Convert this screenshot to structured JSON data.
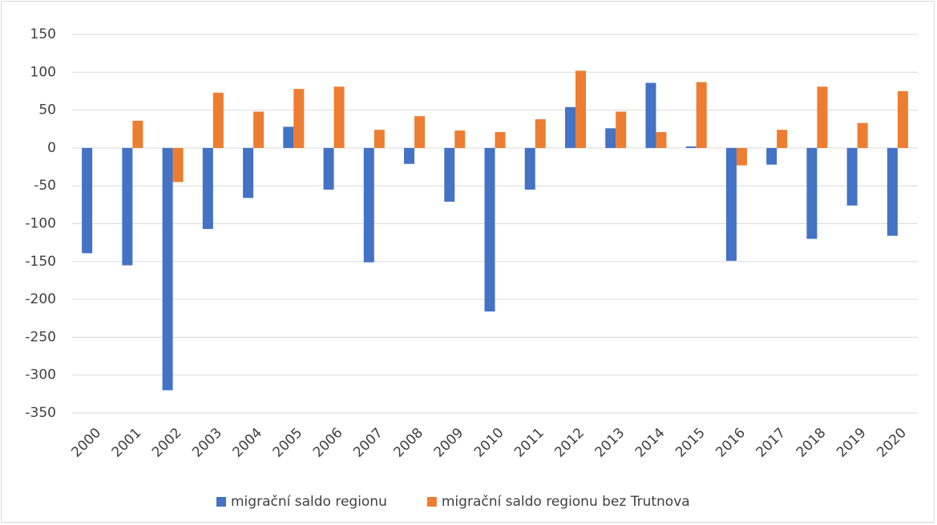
{
  "chart_data": {
    "type": "bar",
    "categories": [
      "2000",
      "2001",
      "2002",
      "2003",
      "2004",
      "2005",
      "2006",
      "2007",
      "2008",
      "2009",
      "2010",
      "2011",
      "2012",
      "2013",
      "2014",
      "2015",
      "2016",
      "2017",
      "2018",
      "2019",
      "2020"
    ],
    "series": [
      {
        "name": "migrační saldo regionu",
        "color": "#4472c4",
        "values": [
          -139,
          -155,
          -320,
          -107,
          -66,
          28,
          -55,
          -151,
          -21,
          -71,
          -216,
          -55,
          54,
          26,
          86,
          2,
          -149,
          -22,
          -120,
          -76,
          -116
        ]
      },
      {
        "name": "migrační saldo regionu bez Trutnova",
        "color": "#ed7d31",
        "values": [
          null,
          36,
          -45,
          73,
          48,
          78,
          81,
          24,
          42,
          23,
          21,
          38,
          102,
          48,
          21,
          87,
          -23,
          24,
          81,
          33,
          75
        ]
      }
    ],
    "ylim": [
      -350,
      150
    ],
    "yticks": [
      -350,
      -300,
      -250,
      -200,
      -150,
      -100,
      -50,
      0,
      50,
      100,
      150
    ],
    "grid": true,
    "legend": "bottom"
  }
}
